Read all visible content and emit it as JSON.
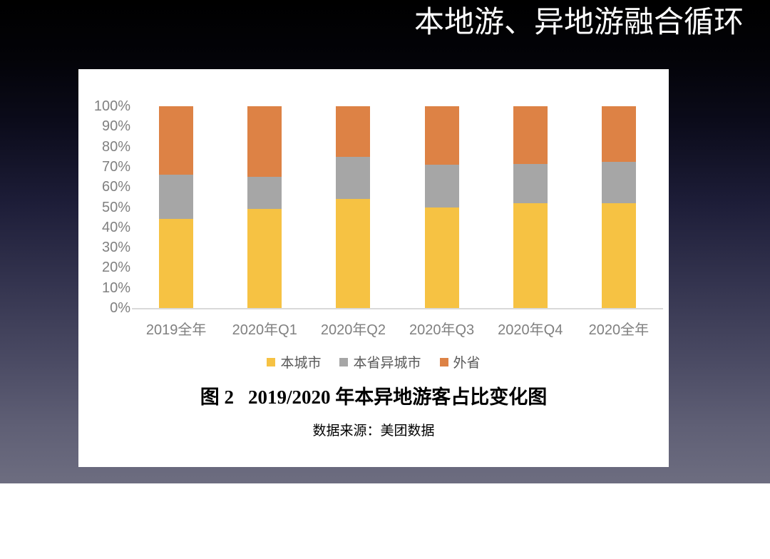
{
  "slide": {
    "title": "本地游、异地游融合循环",
    "background_top_color": "#000000",
    "background_bottom_color": "#6d6d80"
  },
  "chart_data": {
    "type": "bar",
    "stacked": true,
    "percent_stacked": true,
    "title": "",
    "xlabel": "",
    "ylabel": "",
    "categories": [
      "2019全年",
      "2020年Q1",
      "2020年Q2",
      "2020年Q3",
      "2020年Q4",
      "2020全年"
    ],
    "series": [
      {
        "name": "本城市",
        "color": "#F6C243",
        "values": [
          44,
          49,
          54,
          50,
          52,
          52
        ]
      },
      {
        "name": "本省异城市",
        "color": "#A6A6A6",
        "values": [
          22,
          16,
          21,
          21,
          19.5,
          20.5
        ]
      },
      {
        "name": "外省",
        "color": "#DD8245",
        "values": [
          34,
          35,
          25,
          29,
          28.5,
          27.5
        ]
      }
    ],
    "ylim": [
      0,
      100
    ],
    "ytick_labels": [
      "0%",
      "10%",
      "20%",
      "30%",
      "40%",
      "50%",
      "60%",
      "70%",
      "80%",
      "90%",
      "100%"
    ],
    "grid": false,
    "legend_position": "bottom",
    "axis_line_color": "#d9d9d9",
    "tick_label_color": "#808080"
  },
  "caption": {
    "figure_label": "图 2",
    "figure_title": "2019/2020 年本异地游客占比变化图",
    "source": "数据来源：美团数据"
  }
}
